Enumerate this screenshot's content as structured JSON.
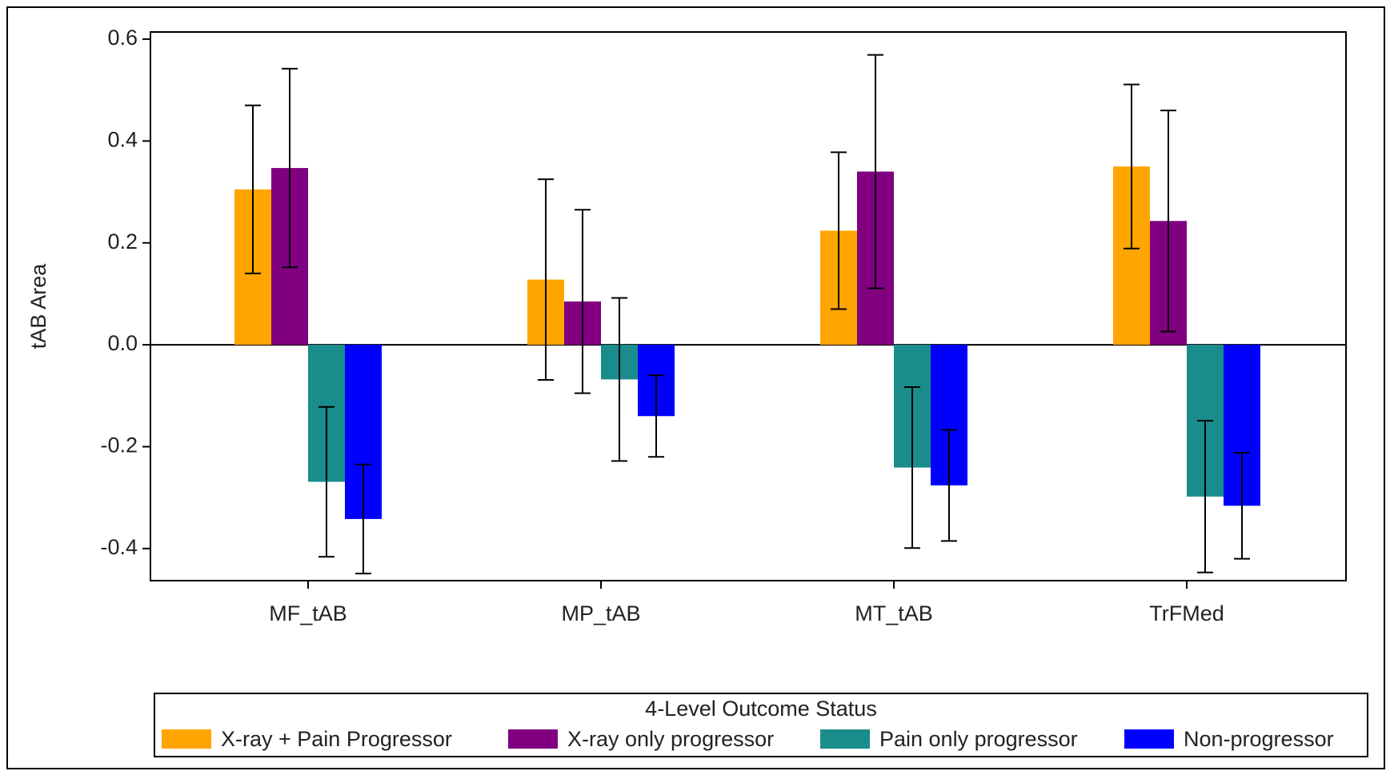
{
  "chart_data": {
    "type": "bar",
    "y_label": "tAB Area",
    "categories": [
      "MF_tAB",
      "MP_tAB",
      "MT_tAB",
      "TrFMed"
    ],
    "series": [
      {
        "name": "X-ray + Pain Progressor",
        "color": "#ffa500",
        "values": [
          0.305,
          0.128,
          0.224,
          0.35
        ],
        "errors": [
          0.165,
          0.197,
          0.154,
          0.161
        ]
      },
      {
        "name": "X-ray only progressor",
        "color": "#800080",
        "values": [
          0.347,
          0.085,
          0.34,
          0.243
        ],
        "errors": [
          0.195,
          0.18,
          0.229,
          0.217
        ]
      },
      {
        "name": "Pain only progressor",
        "color": "#1a8c8c",
        "values": [
          -0.269,
          -0.068,
          -0.241,
          -0.298
        ],
        "errors": [
          0.147,
          0.16,
          0.158,
          0.149
        ]
      },
      {
        "name": "Non-progressor",
        "color": "#0000ff",
        "values": [
          -0.342,
          -0.14,
          -0.276,
          -0.316
        ],
        "errors": [
          0.107,
          0.08,
          0.109,
          0.104
        ]
      }
    ],
    "legend_title": "4-Level Outcome Status",
    "legend_position": "bottom",
    "ylim": [
      -0.463,
      0.614
    ],
    "yticks": [
      {
        "value": -0.4,
        "label": "-0.4"
      },
      {
        "value": -0.2,
        "label": "-0.2"
      },
      {
        "value": 0,
        "label": "0.0"
      },
      0.2,
      0.4,
      0.6
    ]
  }
}
